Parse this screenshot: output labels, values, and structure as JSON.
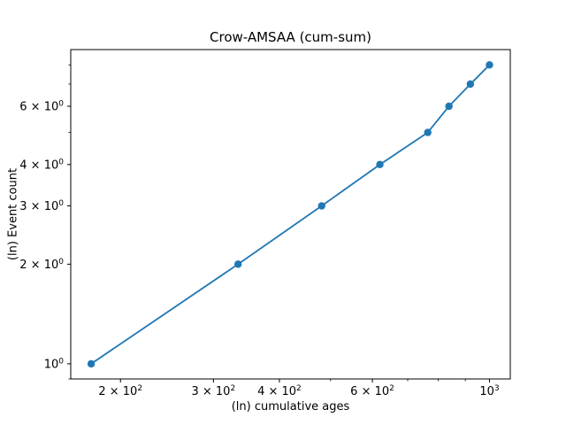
{
  "chart_data": {
    "type": "line",
    "title": "Crow-AMSAA (cum-sum)",
    "xlabel": "(ln) cumulative ages",
    "ylabel": "(ln) Event count",
    "xscale": "log",
    "yscale": "log",
    "x": [
      176,
      334,
      481,
      620,
      764,
      838,
      920,
      1000
    ],
    "y": [
      1,
      2,
      3,
      4,
      5,
      6,
      7,
      8
    ],
    "xlim": [
      161,
      1095
    ],
    "ylim": [
      0.9,
      8.9
    ],
    "line_color": "#1f77b4",
    "marker": "o",
    "grid": false,
    "legend": null,
    "xticks": [
      {
        "value": 200,
        "mantissa": "2",
        "exp": "2"
      },
      {
        "value": 300,
        "mantissa": "3",
        "exp": "2"
      },
      {
        "value": 400,
        "mantissa": "4",
        "exp": "2"
      },
      {
        "value": 600,
        "mantissa": "6",
        "exp": "2"
      },
      {
        "value": 1000,
        "mantissa": "",
        "exp": "3"
      }
    ],
    "yticks": [
      {
        "value": 1,
        "mantissa": "",
        "exp": "0"
      },
      {
        "value": 2,
        "mantissa": "2",
        "exp": "0"
      },
      {
        "value": 3,
        "mantissa": "3",
        "exp": "0"
      },
      {
        "value": 4,
        "mantissa": "4",
        "exp": "0"
      },
      {
        "value": 6,
        "mantissa": "6",
        "exp": "0"
      }
    ]
  }
}
